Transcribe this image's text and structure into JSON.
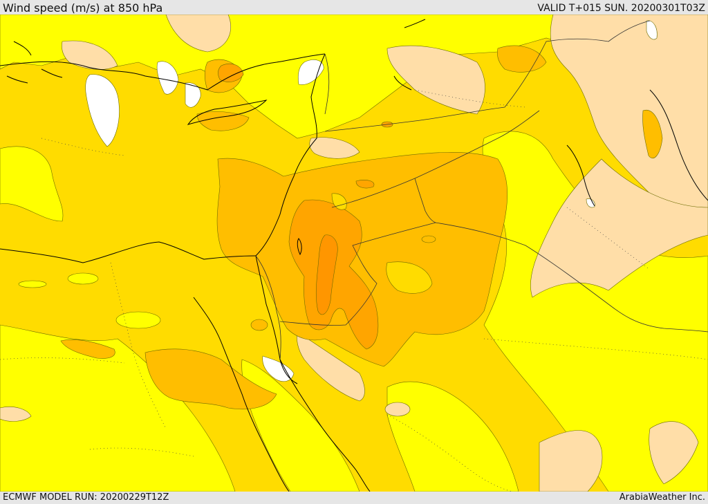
{
  "header": {
    "title": "Wind speed (m/s) at 850 hPa",
    "valid": "VALID T+015 SUN. 20200301T03Z"
  },
  "footer": {
    "model_run": "ECMWF MODEL RUN: 20200229T12Z",
    "credit": "ArabiaWeather Inc."
  },
  "palette": {
    "calm": "#ffffff",
    "light": "#ffdea8",
    "low": "#ffff00",
    "moderate": "#ffdc00",
    "fresh": "#ffbe00",
    "strong": "#ffa500",
    "very_strong": "#ff9600",
    "coast": "#000000",
    "border": "#333333"
  }
}
